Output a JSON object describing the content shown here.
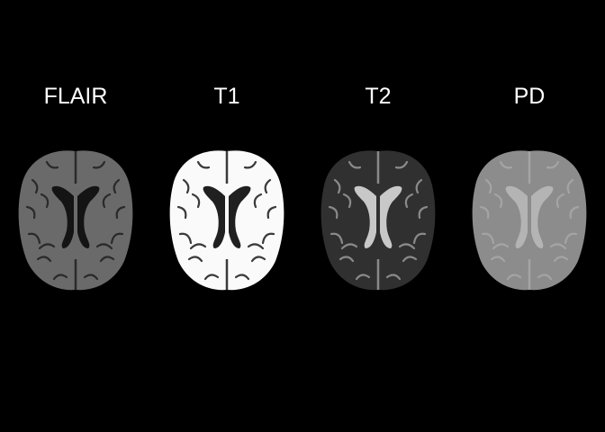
{
  "panels": [
    {
      "label": "FLAIR",
      "image": "axial-brain-mri-flair",
      "parenchyma": "#6a6a6a",
      "ventricle": "#141414",
      "csf": "#2a2a2a"
    },
    {
      "label": "T1",
      "image": "axial-brain-mri-t1",
      "parenchyma": "#fafafa",
      "ventricle": "#202020",
      "csf": "#3a3a3a"
    },
    {
      "label": "T2",
      "image": "axial-brain-mri-t2",
      "parenchyma": "#303030",
      "ventricle": "#c8c8c8",
      "csf": "#8a8a8a"
    },
    {
      "label": "PD",
      "image": "axial-brain-mri-pd",
      "parenchyma": "#8c8c8c",
      "ventricle": "#b4b4b4",
      "csf": "#a4a4a4"
    }
  ]
}
